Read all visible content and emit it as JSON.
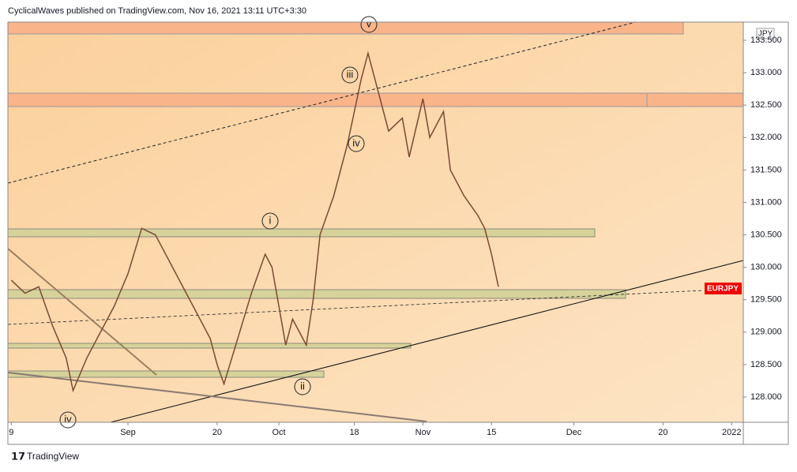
{
  "header": "CyclicalWaves published on TradingView.com, Nov 16, 2021 13:11 UTC+3:30",
  "footer": "TradingView",
  "chart_data": {
    "type": "line",
    "currency": "JPY",
    "symbol_label": "EURJPY",
    "annotations": [
      "v",
      "iii",
      "iv",
      "i",
      "ii",
      "iv"
    ],
    "series": [
      {
        "name": "EURJPY",
        "color": "#7a4a32",
        "x": [
          0,
          2,
          4,
          6,
          8,
          9,
          11,
          13,
          15,
          17,
          19,
          21,
          23,
          25,
          27,
          29,
          30,
          31,
          33,
          35,
          37,
          38,
          40,
          41,
          43,
          44,
          45,
          47,
          49,
          50,
          51,
          52,
          53,
          55,
          57,
          58,
          60,
          61,
          63,
          64,
          66,
          68,
          69,
          70,
          71
        ],
        "values": [
          129.8,
          129.6,
          129.7,
          129.1,
          128.6,
          128.1,
          128.6,
          129.0,
          129.4,
          129.9,
          130.6,
          130.5,
          130.1,
          129.7,
          129.3,
          128.9,
          128.5,
          128.2,
          128.9,
          129.6,
          130.2,
          130.0,
          128.8,
          129.2,
          128.8,
          129.5,
          130.5,
          131.1,
          131.9,
          132.4,
          132.9,
          133.3,
          132.9,
          132.1,
          132.3,
          131.7,
          132.6,
          132.0,
          132.4,
          131.5,
          131.1,
          130.8,
          130.6,
          130.2,
          129.7
        ]
      }
    ],
    "xlim": [
      -0.5,
      106.7
    ],
    "xticks": [
      {
        "value": 0,
        "label": "9"
      },
      {
        "value": 17,
        "label": "Sep"
      },
      {
        "value": 30,
        "label": "20"
      },
      {
        "value": 39,
        "label": "Oct"
      },
      {
        "value": 50,
        "label": "18"
      },
      {
        "value": 60,
        "label": "Nov"
      },
      {
        "value": 70,
        "label": "15"
      },
      {
        "value": 82,
        "label": "Dec"
      },
      {
        "value": 95,
        "label": "20"
      },
      {
        "value": 105,
        "label": "2022"
      }
    ],
    "ylim": [
      127.61,
      133.78
    ],
    "yticks": [
      {
        "value": 128,
        "label": "128.000"
      },
      {
        "value": 128.5,
        "label": "128.500"
      },
      {
        "value": 129,
        "label": "129.000"
      },
      {
        "value": 129.5,
        "label": "129.500"
      },
      {
        "value": 130,
        "label": "130.000"
      },
      {
        "value": 130.5,
        "label": "130.500"
      },
      {
        "value": 131,
        "label": "131.000"
      },
      {
        "value": 131.5,
        "label": "131.500"
      },
      {
        "value": 132,
        "label": "132.000"
      },
      {
        "value": 132.5,
        "label": "132.500"
      },
      {
        "value": 133,
        "label": "133.000"
      },
      {
        "value": 133.5,
        "label": "133.500"
      }
    ]
  }
}
